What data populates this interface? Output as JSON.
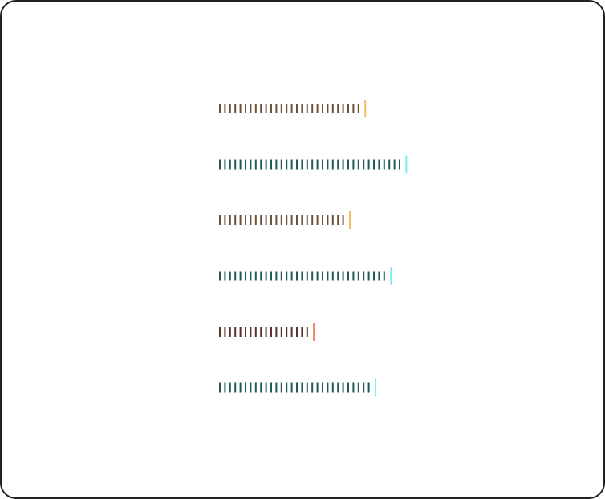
{
  "bars": [
    {
      "ticks": 28,
      "tick_color": "#6b5238",
      "cap_color": "#f5bd62"
    },
    {
      "ticks": 36,
      "tick_color": "#1f5a57",
      "cap_color": "#79eef4"
    },
    {
      "ticks": 25,
      "tick_color": "#6b5238",
      "cap_color": "#f5bd62"
    },
    {
      "ticks": 33,
      "tick_color": "#1f5a57",
      "cap_color": "#79eef4"
    },
    {
      "ticks": 18,
      "tick_color": "#5a3028",
      "cap_color": "#ef7a62"
    },
    {
      "ticks": 30,
      "tick_color": "#1f5a57",
      "cap_color": "#79eef4"
    }
  ]
}
